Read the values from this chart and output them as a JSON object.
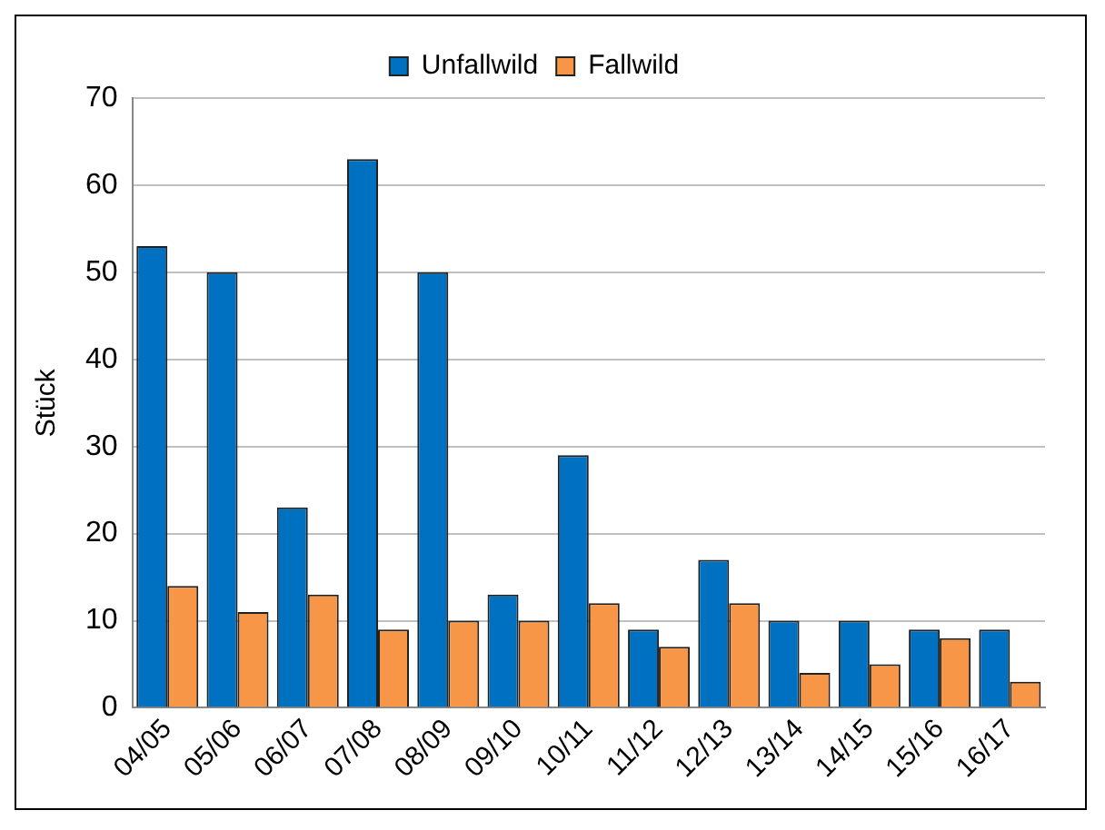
{
  "chart_data": {
    "type": "bar",
    "ylabel": "Stück",
    "categories": [
      "04/05",
      "05/06",
      "06/07",
      "07/08",
      "08/09",
      "09/10",
      "10/11",
      "11/12",
      "12/13",
      "13/14",
      "14/15",
      "15/16",
      "16/17"
    ],
    "series": [
      {
        "name": "Unfallwild",
        "color": "#0070c0",
        "values": [
          53,
          50,
          23,
          63,
          50,
          13,
          29,
          9,
          17,
          10,
          10,
          9,
          9
        ]
      },
      {
        "name": "Fallwild",
        "color": "#f79646",
        "values": [
          14,
          11,
          13,
          9,
          10,
          10,
          12,
          7,
          12,
          4,
          5,
          8,
          3
        ]
      }
    ],
    "ylim": [
      0,
      70
    ],
    "yticks": [
      0,
      10,
      20,
      30,
      40,
      50,
      60,
      70
    ],
    "grid": "y",
    "legend": "top"
  }
}
